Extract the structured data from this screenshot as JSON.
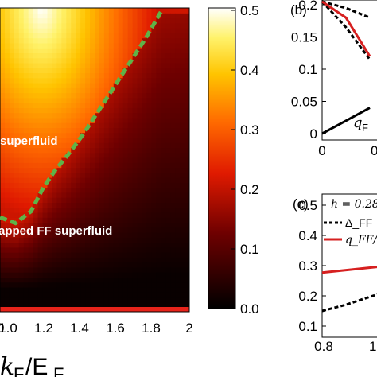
{
  "chart_data": [
    {
      "panel": "a",
      "type": "heatmap",
      "x_ticks": [
        "1.0",
        "1.2",
        "1.4",
        "1.6",
        "1.8",
        "2"
      ],
      "x_tick_prefix": "0",
      "xlabel": "k_F/E_F",
      "xlim": [
        0.78,
        2.0
      ],
      "ylim": [
        0.0,
        1.0
      ],
      "colorbar": {
        "ticks": [
          "0.5",
          "0.4",
          "0.3",
          "0.2",
          "0.1",
          "0.0"
        ],
        "tick_values": [
          0.5,
          0.4,
          0.3,
          0.2,
          0.1,
          0.0
        ],
        "range": [
          0.0,
          0.5
        ],
        "colormap": "hot"
      },
      "region_labels": [
        "superfluid",
        "apped FF superfluid"
      ],
      "boundary_line": {
        "style": "dashed",
        "color": "#5fb348",
        "x": [
          0.78,
          0.88,
          0.98,
          1.06,
          1.14,
          1.22,
          1.32,
          1.42,
          1.52,
          1.62,
          1.72,
          1.82
        ],
        "y": [
          0.3,
          0.28,
          0.32,
          0.4,
          0.46,
          0.51,
          0.58,
          0.66,
          0.74,
          0.82,
          0.9,
          0.99
        ]
      }
    },
    {
      "panel": "b",
      "type": "line",
      "panel_label": "(b)",
      "y_ticks": [
        "0.2",
        "0.15",
        "0.1",
        "0.05",
        "0"
      ],
      "y_tick_values": [
        0.2,
        0.15,
        0.1,
        0.05,
        0.0
      ],
      "x_ticks": [
        "0",
        "0.0"
      ],
      "ylim": [
        0.0,
        0.2
      ],
      "annotation": "q_F",
      "series": [
        {
          "style": "dashed",
          "color": "#000000",
          "x": [
            0.0,
            0.5,
            1.0
          ],
          "y": [
            0.205,
            0.195,
            0.18
          ]
        },
        {
          "style": "dashed",
          "color": "#000000",
          "x": [
            0.0,
            0.5,
            1.0
          ],
          "y": [
            0.205,
            0.165,
            0.115
          ]
        },
        {
          "style": "solid",
          "color": "#d62020",
          "x": [
            0.0,
            0.5,
            1.0
          ],
          "y": [
            0.205,
            0.18,
            0.12
          ]
        },
        {
          "style": "solid",
          "color": "#000000",
          "x": [
            0.0,
            0.5,
            1.0
          ],
          "y": [
            0.0,
            0.02,
            0.04
          ]
        }
      ]
    },
    {
      "panel": "c",
      "type": "line",
      "panel_label": "(c)",
      "y_ticks": [
        "0.5",
        "0.4",
        "0.3",
        "0.2",
        "0.1"
      ],
      "y_tick_values": [
        0.5,
        0.4,
        0.3,
        0.2,
        0.1
      ],
      "x_ticks": [
        "0.8",
        "1.0"
      ],
      "ylim": [
        0.1,
        0.52
      ],
      "legend": {
        "header": "h = 0.28",
        "entries": [
          {
            "label": "Δ_FF",
            "style": "dashed",
            "color": "#000000"
          },
          {
            "label": "q_FF/",
            "style": "solid",
            "color": "#d62020"
          }
        ]
      },
      "series": [
        {
          "name": "Δ_FF",
          "style": "dashed",
          "color": "#000000",
          "x": [
            0.8,
            0.9,
            1.0,
            1.1
          ],
          "y": [
            0.15,
            0.17,
            0.195,
            0.22
          ]
        },
        {
          "name": "q_FF/",
          "style": "solid",
          "color": "#d62020",
          "x": [
            0.8,
            0.9,
            1.0,
            1.1
          ],
          "y": [
            0.277,
            0.285,
            0.293,
            0.3
          ]
        }
      ]
    }
  ]
}
